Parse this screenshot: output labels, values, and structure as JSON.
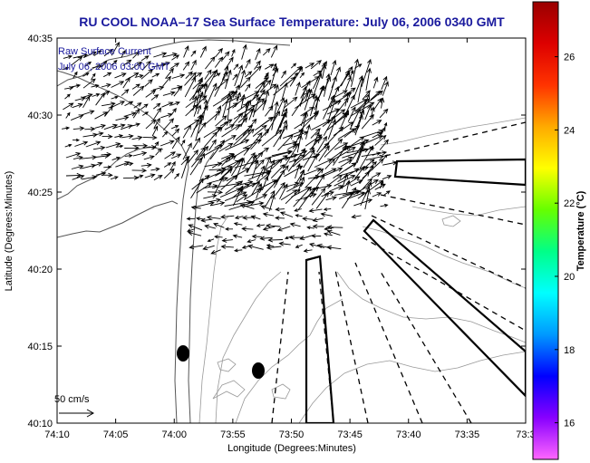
{
  "title": "RU COOL  NOAA–17  Sea Surface Temperature:  July 06, 2006 0340 GMT",
  "annotation": {
    "line1": "Raw Surface Current",
    "line2": "July 06, 2006 03:00 GMT"
  },
  "axes": {
    "xlabel": "Longitude (Degrees:Minutes)",
    "ylabel": "Latitude (Degrees:Minutes)",
    "xticks": [
      "74:10",
      "74:05",
      "74:00",
      "73:55",
      "73:50",
      "73:45",
      "73:40",
      "73:35",
      "73:3"
    ],
    "yticks": [
      "40:35",
      "40:30",
      "40:25",
      "40:20",
      "40:15",
      "40:10"
    ]
  },
  "colorbar": {
    "label": "Temperature (°C)",
    "ticks": [
      "26",
      "24",
      "22",
      "20",
      "18",
      "16"
    ],
    "range": [
      15,
      27.5
    ],
    "colors": [
      "#ff66ff",
      "#8800ff",
      "#0000ff",
      "#0099ff",
      "#00ffff",
      "#00ff88",
      "#66ff00",
      "#ffff00",
      "#ffaa00",
      "#ff3300",
      "#dd0000",
      "#990000"
    ]
  },
  "scale_label": "50 cm/s",
  "colors": {
    "title": "#1a1a9e",
    "frame": "#000000",
    "coast": "#555555",
    "contour": "#999999"
  }
}
